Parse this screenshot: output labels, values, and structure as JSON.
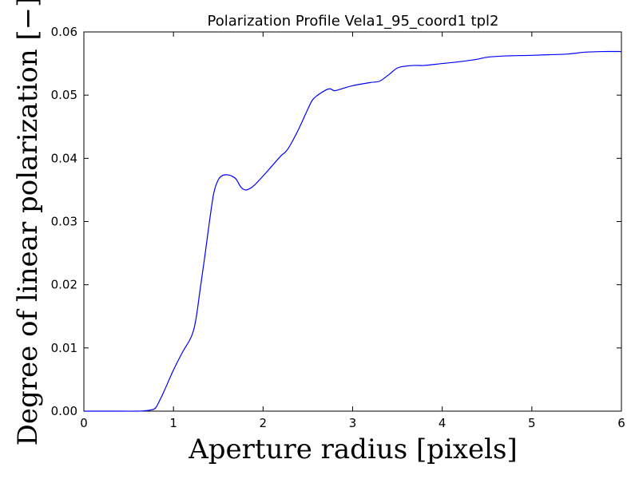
{
  "chart_data": {
    "type": "line",
    "title": "Polarization Profile Vela1_95_coord1 tpl2",
    "xlabel": "Aperture radius [pixels]",
    "ylabel": "Degree of linear polarization [−]",
    "xlim": [
      0,
      6
    ],
    "ylim": [
      0,
      0.06
    ],
    "x_ticks": [
      0,
      1,
      2,
      3,
      4,
      5,
      6
    ],
    "x_tick_labels": [
      "0",
      "1",
      "2",
      "3",
      "4",
      "5",
      "6"
    ],
    "y_ticks": [
      0.0,
      0.01,
      0.02,
      0.03,
      0.04,
      0.05,
      0.06
    ],
    "y_tick_labels": [
      "0.00",
      "0.01",
      "0.02",
      "0.03",
      "0.04",
      "0.05",
      "0.06"
    ],
    "grid": false,
    "legend": "none",
    "series": [
      {
        "color": "#0000ff",
        "x": [
          0.0,
          0.3,
          0.6,
          0.7,
          0.75,
          0.8,
          0.85,
          0.9,
          1.0,
          1.1,
          1.2,
          1.25,
          1.3,
          1.35,
          1.4,
          1.45,
          1.5,
          1.55,
          1.6,
          1.65,
          1.7,
          1.75,
          1.8,
          1.85,
          1.9,
          2.0,
          2.1,
          2.2,
          2.25,
          2.3,
          2.4,
          2.5,
          2.55,
          2.6,
          2.7,
          2.75,
          2.8,
          2.9,
          3.0,
          3.2,
          3.3,
          3.4,
          3.5,
          3.6,
          3.7,
          3.8,
          4.0,
          4.2,
          4.4,
          4.5,
          4.7,
          5.0,
          5.2,
          5.4,
          5.6,
          5.8,
          6.0
        ],
        "y": [
          0.0,
          0.0,
          0.0,
          0.0001,
          0.0002,
          0.0005,
          0.0018,
          0.0033,
          0.0065,
          0.0093,
          0.0118,
          0.0145,
          0.0195,
          0.0245,
          0.0298,
          0.0345,
          0.0366,
          0.0373,
          0.0374,
          0.0372,
          0.0367,
          0.0355,
          0.035,
          0.0352,
          0.0357,
          0.0372,
          0.0388,
          0.0404,
          0.041,
          0.042,
          0.0447,
          0.0478,
          0.0492,
          0.0499,
          0.0508,
          0.051,
          0.0507,
          0.0511,
          0.0515,
          0.052,
          0.0522,
          0.0532,
          0.0543,
          0.0546,
          0.0547,
          0.0547,
          0.055,
          0.0553,
          0.0557,
          0.056,
          0.0562,
          0.0563,
          0.0564,
          0.0565,
          0.0568,
          0.0569,
          0.0569
        ]
      }
    ]
  }
}
